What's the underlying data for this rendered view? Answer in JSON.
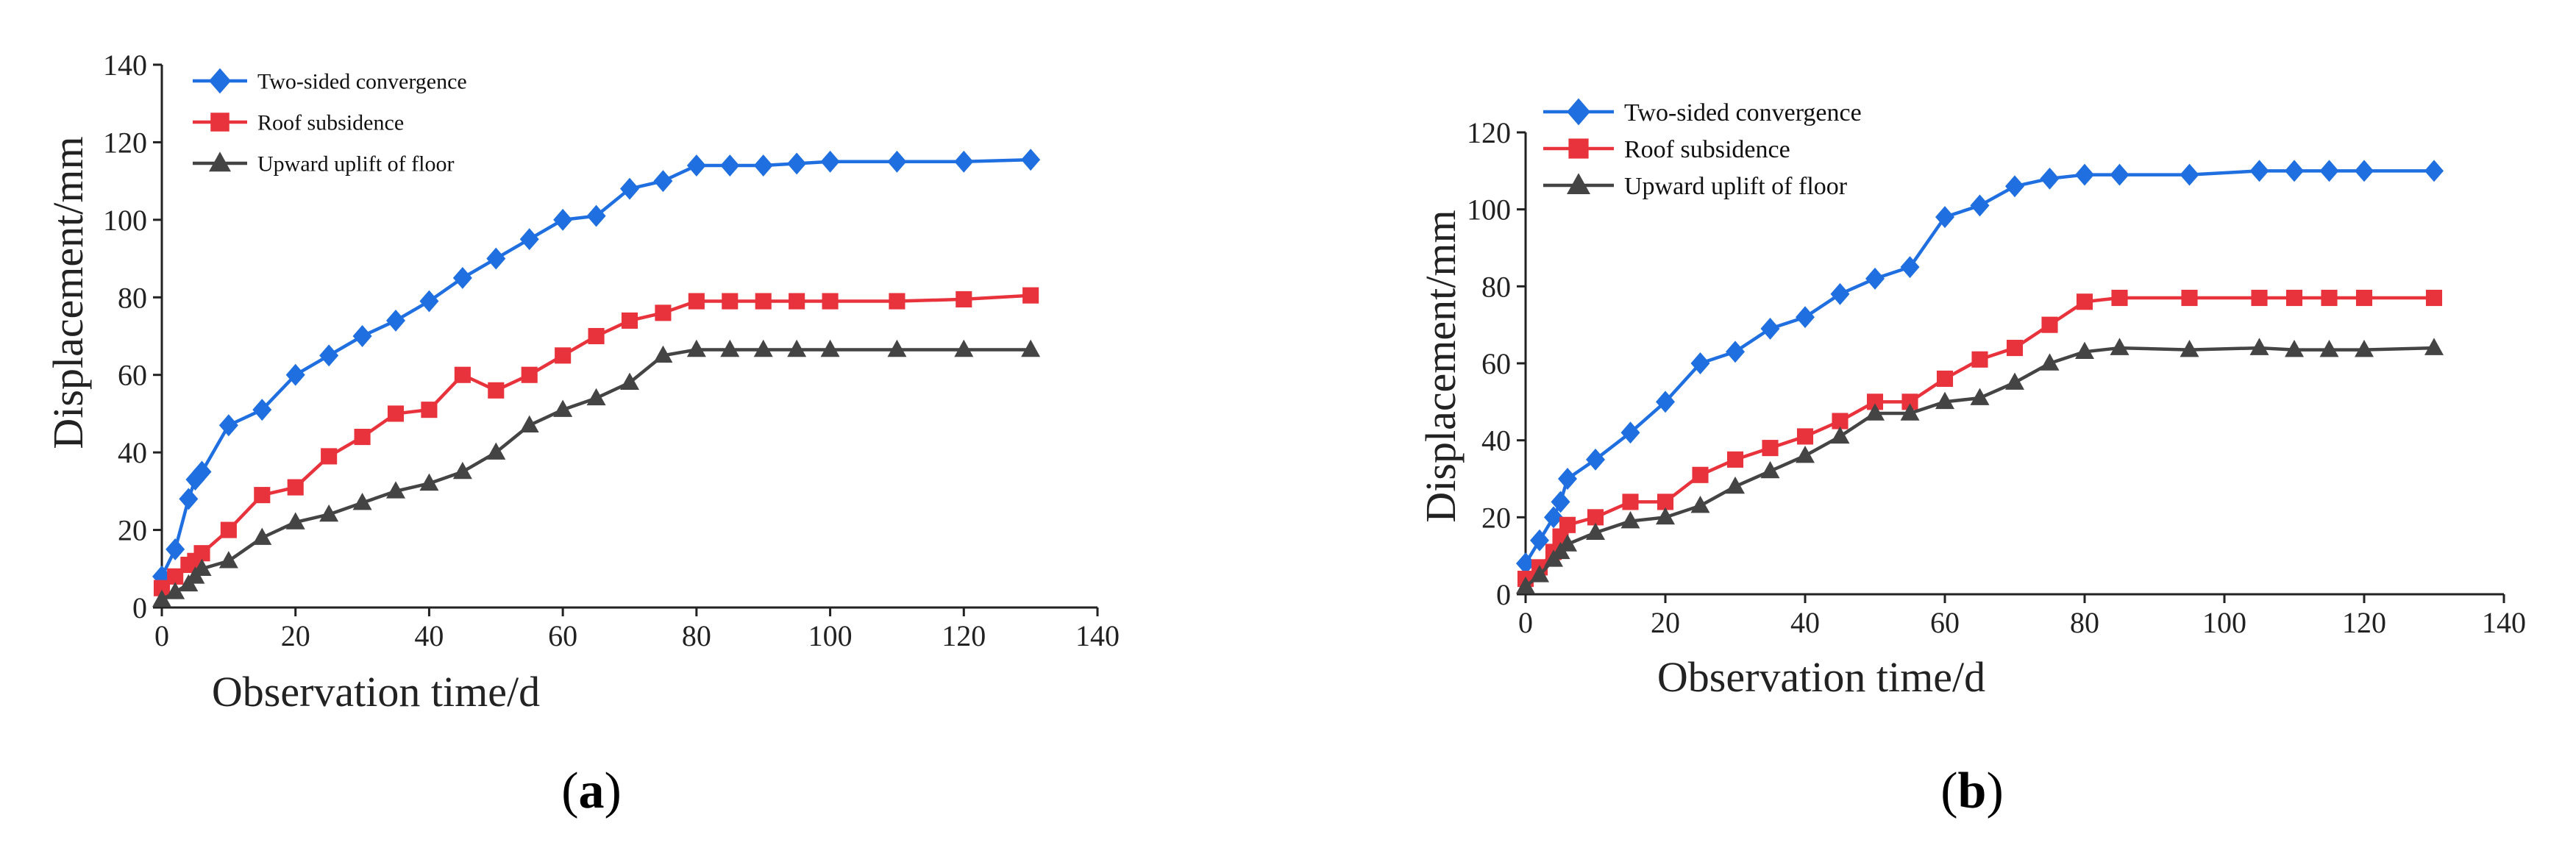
{
  "colors": {
    "two_sided": "#1f6fe0",
    "roof": "#e8333c",
    "floor": "#444444",
    "axis": "#222222"
  },
  "chart_data": [
    {
      "type": "line",
      "panel_label": "(a)",
      "panel_letter": "a",
      "xlabel": "Observation time/d",
      "ylabel": "Displacement/mm",
      "xlim": [
        0,
        140
      ],
      "ylim": [
        0,
        140
      ],
      "xticks": [
        0,
        20,
        40,
        60,
        80,
        100,
        120,
        140
      ],
      "yticks": [
        0,
        20,
        40,
        60,
        80,
        100,
        120,
        140
      ],
      "legend_position": "top-left",
      "series": [
        {
          "name": "Two-sided convergence",
          "marker": "diamond",
          "color_key": "two_sided",
          "x": [
            0,
            2,
            4,
            5,
            6,
            10,
            15,
            20,
            25,
            30,
            35,
            40,
            45,
            50,
            55,
            60,
            65,
            70,
            75,
            80,
            85,
            90,
            95,
            100,
            110,
            120,
            130
          ],
          "y": [
            8,
            15,
            28,
            33,
            35,
            47,
            51,
            60,
            65,
            70,
            74,
            79,
            85,
            90,
            95,
            100,
            101,
            108,
            110,
            114,
            114,
            114,
            114.5,
            115,
            115,
            115,
            115.5
          ]
        },
        {
          "name": "Roof subsidence",
          "marker": "square",
          "color_key": "roof",
          "x": [
            0,
            2,
            4,
            5,
            6,
            10,
            15,
            20,
            25,
            30,
            35,
            40,
            45,
            50,
            55,
            60,
            65,
            70,
            75,
            80,
            85,
            90,
            95,
            100,
            110,
            120,
            130
          ],
          "y": [
            5,
            8,
            11,
            12,
            14,
            20,
            29,
            31,
            39,
            44,
            50,
            51,
            60,
            56,
            60,
            65,
            70,
            74,
            76,
            79,
            79,
            79,
            79,
            79,
            79,
            79.5,
            80.5
          ]
        },
        {
          "name": "Upward uplift of floor",
          "marker": "triangle",
          "color_key": "floor",
          "x": [
            0,
            2,
            4,
            5,
            6,
            10,
            15,
            20,
            25,
            30,
            35,
            40,
            45,
            50,
            55,
            60,
            65,
            70,
            75,
            80,
            85,
            90,
            95,
            100,
            110,
            120,
            130
          ],
          "y": [
            2,
            4,
            6,
            8,
            10,
            12,
            18,
            22,
            24,
            27,
            30,
            32,
            35,
            40,
            47,
            51,
            54,
            58,
            65,
            66.5,
            66.5,
            66.5,
            66.5,
            66.5,
            66.5,
            66.5,
            66.5
          ]
        }
      ]
    },
    {
      "type": "line",
      "panel_label": "(b)",
      "panel_letter": "b",
      "xlabel": "Observation time/d",
      "ylabel": "Displacement/mm",
      "xlim": [
        0,
        140
      ],
      "ylim": [
        0,
        120
      ],
      "xticks": [
        0,
        20,
        40,
        60,
        80,
        100,
        120,
        140
      ],
      "yticks": [
        0,
        20,
        40,
        60,
        80,
        100,
        120
      ],
      "legend_position": "top-left",
      "series": [
        {
          "name": "Two-sided convergence",
          "marker": "diamond",
          "color_key": "two_sided",
          "x": [
            0,
            2,
            4,
            5,
            6,
            10,
            15,
            20,
            25,
            30,
            35,
            40,
            45,
            50,
            55,
            60,
            65,
            70,
            75,
            80,
            85,
            95,
            105,
            110,
            115,
            120,
            130
          ],
          "y": [
            8,
            14,
            20,
            24,
            30,
            35,
            42,
            50,
            60,
            63,
            69,
            72,
            78,
            82,
            85,
            98,
            101,
            106,
            108,
            109,
            109,
            109,
            110,
            110,
            110,
            110,
            110
          ]
        },
        {
          "name": "Roof subsidence",
          "marker": "square",
          "color_key": "roof",
          "x": [
            0,
            2,
            4,
            5,
            6,
            10,
            15,
            20,
            25,
            30,
            35,
            40,
            45,
            50,
            55,
            60,
            65,
            70,
            75,
            80,
            85,
            95,
            105,
            110,
            115,
            120,
            130
          ],
          "y": [
            4,
            7,
            11,
            15,
            18,
            20,
            24,
            24,
            31,
            35,
            38,
            41,
            45,
            50,
            50,
            56,
            61,
            64,
            70,
            76,
            77,
            77,
            77,
            77,
            77,
            77,
            77
          ]
        },
        {
          "name": "Upward uplift of floor",
          "marker": "triangle",
          "color_key": "floor",
          "x": [
            0,
            2,
            4,
            5,
            6,
            10,
            15,
            20,
            25,
            30,
            35,
            40,
            45,
            50,
            55,
            60,
            65,
            70,
            75,
            80,
            85,
            95,
            105,
            110,
            115,
            120,
            130
          ],
          "y": [
            2,
            5,
            9,
            11,
            13,
            16,
            19,
            20,
            23,
            28,
            32,
            36,
            41,
            47,
            47,
            50,
            51,
            55,
            60,
            63,
            64,
            63.5,
            64,
            63.5,
            63.5,
            63.5,
            64
          ]
        }
      ]
    }
  ]
}
